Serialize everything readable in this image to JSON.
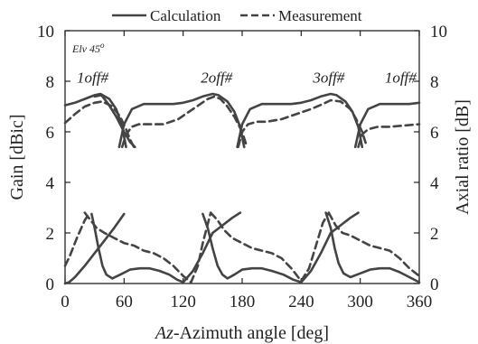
{
  "chart_data": {
    "type": "line",
    "legend": {
      "placement": "top-center",
      "entries": [
        {
          "label": "Calculation",
          "style": "solid"
        },
        {
          "label": "Measurement",
          "style": "dashed"
        }
      ]
    },
    "xlabel_italic": "Az",
    "xlabel_rest": "-Azimuth angle [deg]",
    "ylabel_left": "Gain [dBic]",
    "ylabel_right": "Axial ratio [dB]",
    "xlim": [
      0,
      360
    ],
    "ylim": [
      0,
      10
    ],
    "x_ticks": [
      "0",
      "60",
      "120",
      "180",
      "240",
      "300",
      "360"
    ],
    "x_tick_values": [
      0,
      60,
      120,
      180,
      240,
      300,
      360
    ],
    "y_ticks": [
      "0",
      "2",
      "4",
      "6",
      "8",
      "10"
    ],
    "y_tick_values": [
      0,
      2,
      4,
      6,
      8,
      10
    ],
    "grid": false,
    "line_color": "#444444",
    "elevation_label": {
      "text": "Elv 45",
      "sup": "o"
    },
    "annotations": [
      {
        "text": "1off#",
        "x": 28,
        "y": 7.95
      },
      {
        "text": "2off#",
        "x": 154,
        "y": 7.95
      },
      {
        "text": "3off#",
        "x": 268,
        "y": 7.95
      },
      {
        "text": "1off#",
        "x": 341,
        "y": 7.95
      }
    ],
    "series": [
      {
        "style": "solid",
        "group": "gain",
        "x": [
          0,
          10,
          20,
          30,
          36,
          45,
          52,
          58,
          62
        ],
        "y": [
          7.05,
          7.15,
          7.3,
          7.45,
          7.5,
          7.3,
          6.9,
          6.2,
          5.4
        ]
      },
      {
        "style": "solid",
        "group": "gain",
        "x": [
          55,
          60,
          68,
          80,
          95,
          110,
          120,
          130,
          140,
          150,
          156,
          165,
          172,
          178,
          182
        ],
        "y": [
          5.4,
          6.3,
          6.9,
          7.1,
          7.1,
          7.1,
          7.15,
          7.25,
          7.4,
          7.5,
          7.45,
          7.2,
          6.8,
          6.2,
          5.4
        ]
      },
      {
        "style": "solid",
        "group": "gain",
        "x": [
          175,
          180,
          188,
          200,
          215,
          230,
          240,
          250,
          260,
          270,
          276,
          285,
          292,
          298,
          302
        ],
        "y": [
          5.4,
          6.3,
          6.9,
          7.1,
          7.1,
          7.1,
          7.15,
          7.25,
          7.4,
          7.5,
          7.45,
          7.2,
          6.8,
          6.2,
          5.4
        ]
      },
      {
        "style": "solid",
        "group": "gain",
        "x": [
          295,
          300,
          308,
          320,
          335,
          350,
          360
        ],
        "y": [
          5.4,
          6.3,
          6.9,
          7.1,
          7.1,
          7.1,
          7.15
        ]
      },
      {
        "style": "solid",
        "group": "gain",
        "x": [
          30,
          37,
          44,
          52,
          60,
          66,
          71
        ],
        "y": [
          7.4,
          7.45,
          7.1,
          6.6,
          6.0,
          5.6,
          5.4
        ]
      },
      {
        "style": "dashed",
        "group": "gain",
        "x": [
          0,
          10,
          20,
          30,
          38,
          48,
          56,
          62,
          66,
          70
        ],
        "y": [
          6.35,
          6.7,
          7.0,
          7.15,
          7.2,
          7.0,
          6.6,
          6.1,
          5.7,
          5.4
        ]
      },
      {
        "style": "dashed",
        "group": "gain",
        "x": [
          58,
          62,
          68,
          75,
          85,
          100,
          115,
          130,
          145,
          152,
          158,
          165,
          172,
          180,
          184
        ],
        "y": [
          5.4,
          5.9,
          6.2,
          6.3,
          6.3,
          6.3,
          6.5,
          6.9,
          7.3,
          7.4,
          7.3,
          7.0,
          6.6,
          6.0,
          5.5
        ]
      },
      {
        "style": "dashed",
        "group": "gain",
        "x": [
          176,
          180,
          186,
          195,
          205,
          220,
          235,
          250,
          262,
          270,
          280,
          290,
          296,
          302,
          306
        ],
        "y": [
          5.4,
          6.0,
          6.3,
          6.4,
          6.4,
          6.5,
          6.7,
          6.9,
          7.1,
          7.25,
          7.2,
          6.9,
          6.5,
          6.0,
          5.5
        ]
      },
      {
        "style": "dashed",
        "group": "gain",
        "x": [
          298,
          302,
          308,
          318,
          330,
          345,
          360
        ],
        "y": [
          5.4,
          5.9,
          6.1,
          6.2,
          6.2,
          6.25,
          6.3
        ]
      },
      {
        "style": "solid",
        "group": "axial_ratio",
        "x": [
          0,
          4,
          10,
          20,
          30,
          40,
          50,
          60
        ],
        "y": [
          0.0,
          0.05,
          0.25,
          0.7,
          1.2,
          1.7,
          2.2,
          2.75
        ]
      },
      {
        "style": "solid",
        "group": "axial_ratio",
        "x": [
          27,
          30,
          34,
          38,
          42,
          48,
          56,
          66,
          76,
          86,
          96,
          106,
          114,
          120,
          130,
          140,
          150
        ],
        "y": [
          2.75,
          2.2,
          1.4,
          0.7,
          0.35,
          0.2,
          0.35,
          0.55,
          0.6,
          0.6,
          0.5,
          0.35,
          0.15,
          0.05,
          0.5,
          1.2,
          2.0
        ]
      },
      {
        "style": "solid",
        "group": "axial_ratio",
        "x": [
          140,
          145,
          150,
          155,
          160,
          165,
          172,
          180,
          190,
          200,
          210,
          222,
          232,
          240,
          250,
          260,
          270
        ],
        "y": [
          2.75,
          2.2,
          1.4,
          0.7,
          0.35,
          0.2,
          0.35,
          0.55,
          0.6,
          0.6,
          0.5,
          0.35,
          0.15,
          0.05,
          0.5,
          1.2,
          2.0
        ]
      },
      {
        "style": "solid",
        "group": "axial_ratio",
        "x": [
          150,
          160,
          170,
          178
        ],
        "y": [
          2.0,
          2.3,
          2.6,
          2.8
        ]
      },
      {
        "style": "solid",
        "group": "axial_ratio",
        "x": [
          265,
          270,
          274,
          278,
          283,
          290,
          300,
          310,
          320,
          330,
          340,
          350,
          360
        ],
        "y": [
          2.8,
          2.2,
          1.4,
          0.8,
          0.4,
          0.25,
          0.4,
          0.55,
          0.6,
          0.6,
          0.45,
          0.25,
          0.05
        ]
      },
      {
        "style": "solid",
        "group": "axial_ratio",
        "x": [
          270,
          280,
          290,
          298
        ],
        "y": [
          2.0,
          2.3,
          2.6,
          2.8
        ]
      },
      {
        "style": "dashed",
        "group": "axial_ratio",
        "x": [
          0,
          5,
          12,
          20,
          25
        ],
        "y": [
          0.7,
          1.1,
          1.8,
          2.5,
          2.8
        ]
      },
      {
        "style": "dashed",
        "group": "axial_ratio",
        "x": [
          20,
          26,
          32,
          40,
          50,
          60,
          70,
          80,
          90,
          100,
          110,
          120,
          128,
          135,
          140,
          148
        ],
        "y": [
          2.8,
          2.5,
          2.2,
          2.0,
          1.8,
          1.6,
          1.5,
          1.3,
          1.2,
          1.0,
          0.7,
          0.3,
          0.05,
          0.7,
          1.6,
          2.8
        ]
      },
      {
        "style": "dashed",
        "group": "axial_ratio",
        "x": [
          148,
          155,
          162,
          170,
          180,
          190,
          200,
          210,
          220,
          230,
          240,
          248,
          255,
          262,
          268
        ],
        "y": [
          2.8,
          2.5,
          2.1,
          1.8,
          1.6,
          1.4,
          1.3,
          1.2,
          1.0,
          0.6,
          0.1,
          0.6,
          1.5,
          2.4,
          2.8
        ]
      },
      {
        "style": "dashed",
        "group": "axial_ratio",
        "x": [
          268,
          275,
          282,
          290,
          300,
          310,
          320,
          330,
          340,
          350,
          360
        ],
        "y": [
          2.8,
          2.3,
          2.0,
          1.9,
          1.7,
          1.5,
          1.4,
          1.3,
          1.0,
          0.6,
          0.3
        ]
      }
    ]
  }
}
